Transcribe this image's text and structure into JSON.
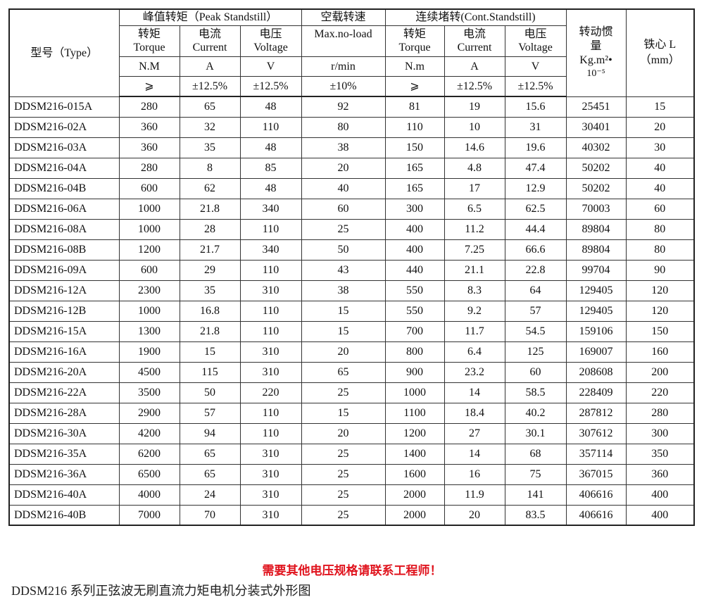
{
  "header": {
    "type": "型号（Type）",
    "peak": "峰值转矩（Peak Standstill）",
    "noload": "空载转速",
    "noload_en": "Max.no-load",
    "cont": "连续堵转(Cont.Standstill)",
    "inertia": "转动惯量",
    "inertia_unit": "Kg.m²•",
    "inertia_exp": "10⁻⁵",
    "core": "铁心 L",
    "core_unit": "（mm）",
    "sub": [
      {
        "cn": "转矩",
        "en": "Torque",
        "unit": "N.M",
        "tol": "⩾"
      },
      {
        "cn": "电流",
        "en": "Current",
        "unit": "A",
        "tol": "±12.5%"
      },
      {
        "cn": "电压",
        "en": "Voltage",
        "unit": "V",
        "tol": "±12.5%"
      },
      {
        "unit": "r/min",
        "tol": "±10%"
      },
      {
        "cn": "转矩",
        "en": "Torque",
        "unit": "N.m",
        "tol": "⩾"
      },
      {
        "cn": "电流",
        "en": "Current",
        "unit": "A",
        "tol": "±12.5%"
      },
      {
        "cn": "电压",
        "en": "Voltage",
        "unit": "V",
        "tol": "±12.5%"
      }
    ]
  },
  "rows": [
    [
      "DDSM216-015A",
      "280",
      "65",
      "48",
      "92",
      "81",
      "19",
      "15.6",
      "25451",
      "15"
    ],
    [
      "DDSM216-02A",
      "360",
      "32",
      "110",
      "80",
      "110",
      "10",
      "31",
      "30401",
      "20"
    ],
    [
      "DDSM216-03A",
      "360",
      "35",
      "48",
      "38",
      "150",
      "14.6",
      "19.6",
      "40302",
      "30"
    ],
    [
      "DDSM216-04A",
      "280",
      "8",
      "85",
      "20",
      "165",
      "4.8",
      "47.4",
      "50202",
      "40"
    ],
    [
      "DDSM216-04B",
      "600",
      "62",
      "48",
      "40",
      "165",
      "17",
      "12.9",
      "50202",
      "40"
    ],
    [
      "DDSM216-06A",
      "1000",
      "21.8",
      "340",
      "60",
      "300",
      "6.5",
      "62.5",
      "70003",
      "60"
    ],
    [
      "DDSM216-08A",
      "1000",
      "28",
      "110",
      "25",
      "400",
      "11.2",
      "44.4",
      "89804",
      "80"
    ],
    [
      "DDSM216-08B",
      "1200",
      "21.7",
      "340",
      "50",
      "400",
      "7.25",
      "66.6",
      "89804",
      "80"
    ],
    [
      "DDSM216-09A",
      "600",
      "29",
      "110",
      "43",
      "440",
      "21.1",
      "22.8",
      "99704",
      "90"
    ],
    [
      "DDSM216-12A",
      "2300",
      "35",
      "310",
      "38",
      "550",
      "8.3",
      "64",
      "129405",
      "120"
    ],
    [
      "DDSM216-12B",
      "1000",
      "16.8",
      "110",
      "15",
      "550",
      "9.2",
      "57",
      "129405",
      "120"
    ],
    [
      "DDSM216-15A",
      "1300",
      "21.8",
      "110",
      "15",
      "700",
      "11.7",
      "54.5",
      "159106",
      "150"
    ],
    [
      "DDSM216-16A",
      "1900",
      "15",
      "310",
      "20",
      "800",
      "6.4",
      "125",
      "169007",
      "160"
    ],
    [
      "DDSM216-20A",
      "4500",
      "115",
      "310",
      "65",
      "900",
      "23.2",
      "60",
      "208608",
      "200"
    ],
    [
      "DDSM216-22A",
      "3500",
      "50",
      "220",
      "25",
      "1000",
      "14",
      "58.5",
      "228409",
      "220"
    ],
    [
      "DDSM216-28A",
      "2900",
      "57",
      "110",
      "15",
      "1100",
      "18.4",
      "40.2",
      "287812",
      "280"
    ],
    [
      "DDSM216-30A",
      "4200",
      "94",
      "110",
      "20",
      "1200",
      "27",
      "30.1",
      "307612",
      "300"
    ],
    [
      "DDSM216-35A",
      "6200",
      "65",
      "310",
      "25",
      "1400",
      "14",
      "68",
      "357114",
      "350"
    ],
    [
      "DDSM216-36A",
      "6500",
      "65",
      "310",
      "25",
      "1600",
      "16",
      "75",
      "367015",
      "360"
    ],
    [
      "DDSM216-40A",
      "4000",
      "24",
      "310",
      "25",
      "2000",
      "11.9",
      "141",
      "406616",
      "400"
    ],
    [
      "DDSM216-40B",
      "7000",
      "70",
      "310",
      "25",
      "2000",
      "20",
      "83.5",
      "406616",
      "400"
    ]
  ],
  "note": "需要其他电压规格请联系工程师！",
  "note_color": "#e0141e",
  "caption": "DDSM216 系列正弦波无刷直流力矩电机分装式外形图"
}
